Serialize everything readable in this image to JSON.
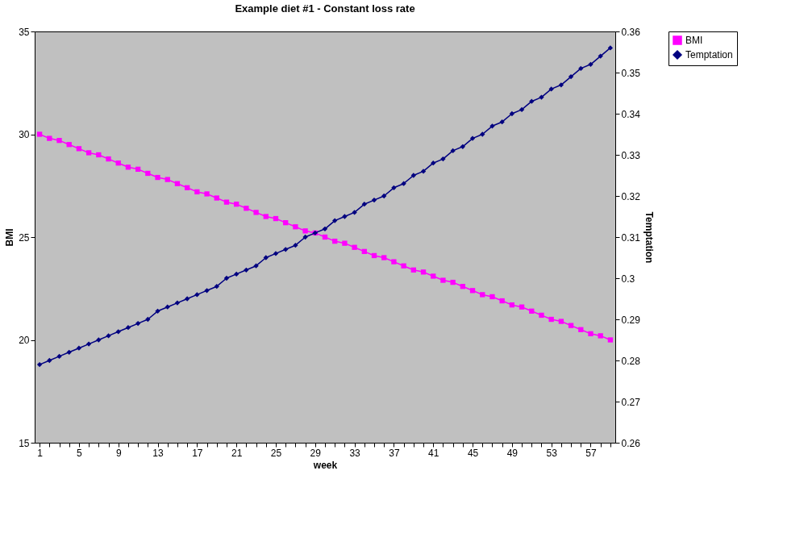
{
  "chart_data": {
    "type": "line",
    "title": "Example diet #1 - Constant loss rate",
    "xlabel": "week",
    "ylabel": "BMI",
    "y2label": "Temptation",
    "categories": [
      "1",
      null,
      null,
      null,
      "5",
      null,
      null,
      null,
      "9",
      null,
      null,
      null,
      "13",
      null,
      null,
      null,
      "17",
      null,
      null,
      null,
      "21",
      null,
      null,
      null,
      "25",
      null,
      null,
      null,
      "29",
      null,
      null,
      null,
      "33",
      null,
      null,
      null,
      "37",
      null,
      null,
      null,
      "41",
      null,
      null,
      null,
      "45",
      null,
      null,
      null,
      "49",
      null,
      null,
      null,
      "53",
      null,
      null,
      null,
      "57",
      null,
      null
    ],
    "ylim": [
      15,
      35
    ],
    "yticks": [
      15,
      20,
      25,
      30,
      35
    ],
    "y2lim": [
      0.26,
      0.36
    ],
    "y2ticks": [
      0.26,
      0.27,
      0.28,
      0.29,
      0.3,
      0.31,
      0.32,
      0.33,
      0.34,
      0.35,
      0.36
    ],
    "legend": "right",
    "series": [
      {
        "name": "BMI",
        "marker": "square",
        "color": "#ff00ff",
        "values": [
          30.0,
          29.8,
          29.7,
          29.5,
          29.3,
          29.1,
          29.0,
          28.8,
          28.6,
          28.4,
          28.3,
          28.1,
          27.9,
          27.8,
          27.6,
          27.4,
          27.2,
          27.1,
          26.9,
          26.7,
          26.6,
          26.4,
          26.2,
          26.0,
          25.9,
          25.7,
          25.5,
          25.3,
          25.2,
          25.0,
          24.8,
          24.7,
          24.5,
          24.3,
          24.1,
          24.0,
          23.8,
          23.6,
          23.4,
          23.3,
          23.1,
          22.9,
          22.8,
          22.6,
          22.4,
          22.2,
          22.1,
          21.9,
          21.7,
          21.6,
          21.4,
          21.2,
          21.0,
          20.9,
          20.7,
          20.5,
          20.3,
          20.2,
          20.0
        ]
      },
      {
        "name": "Temptation",
        "marker": "diamond",
        "axis": "y2",
        "color": "#000080",
        "values": [
          0.279,
          0.28,
          0.281,
          0.282,
          0.283,
          0.284,
          0.285,
          0.286,
          0.287,
          0.288,
          0.289,
          0.29,
          0.292,
          0.293,
          0.294,
          0.295,
          0.296,
          0.297,
          0.298,
          0.3,
          0.301,
          0.302,
          0.303,
          0.305,
          0.306,
          0.307,
          0.308,
          0.31,
          0.311,
          0.312,
          0.314,
          0.315,
          0.316,
          0.318,
          0.319,
          0.32,
          0.322,
          0.323,
          0.325,
          0.326,
          0.328,
          0.329,
          0.331,
          0.332,
          0.334,
          0.335,
          0.337,
          0.338,
          0.34,
          0.341,
          0.343,
          0.344,
          0.346,
          0.347,
          0.349,
          0.351,
          0.352,
          0.354,
          0.356
        ]
      }
    ]
  }
}
